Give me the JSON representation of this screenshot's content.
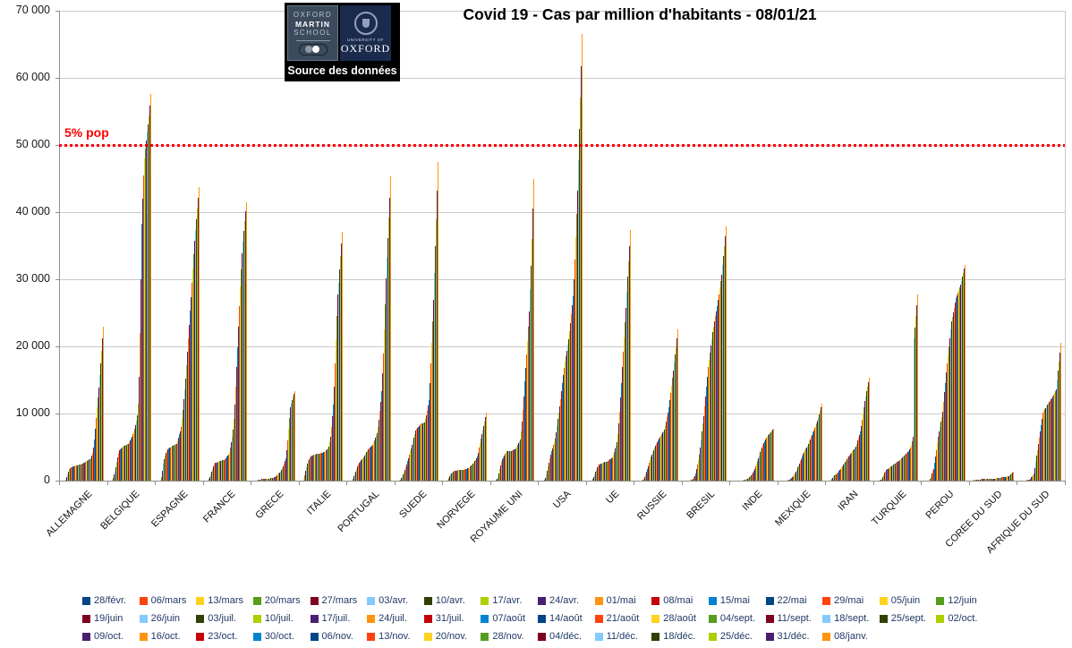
{
  "title": "Covid 19 - Cas par million d'habitants - 08/01/21",
  "logo": {
    "school_line1": "OXFORD",
    "school_line2": "MARTIN",
    "school_line3": "SCHOOL",
    "univ_line1": "UNIVERSITY OF",
    "univ_line2": "OXFORD",
    "caption": "Source des données"
  },
  "threshold": {
    "label": "5% pop",
    "value": 50000,
    "color": "#fe0000"
  },
  "y_axis": {
    "ticks": [
      {
        "value": 70000,
        "label": "70 000"
      },
      {
        "value": 60000,
        "label": "60 000"
      },
      {
        "value": 50000,
        "label": "50 000"
      },
      {
        "value": 40000,
        "label": "40 000"
      },
      {
        "value": 30000,
        "label": "30 000"
      },
      {
        "value": 20000,
        "label": "20 000"
      },
      {
        "value": 10000,
        "label": "10 000"
      },
      {
        "value": 0,
        "label": "0"
      }
    ]
  },
  "palette": [
    "#004586",
    "#ff420e",
    "#ffd320",
    "#579d1c",
    "#7e0021",
    "#83caff",
    "#314004",
    "#aecf00",
    "#4b1f6f",
    "#ff950e",
    "#c5000b",
    "#0084d1"
  ],
  "legend": {
    "text_color": "#1f3864",
    "columns": 16,
    "rows": [
      16,
      16,
      14
    ],
    "position": "bottom"
  },
  "chart_data": {
    "type": "bar",
    "title": "Covid 19 - Cas par million d'habitants - 08/01/21",
    "xlabel": "",
    "ylabel": "",
    "ylim": [
      0,
      70000
    ],
    "grid": true,
    "legend_position": "bottom",
    "note": "Cumulative Covid-19 cases per million inhabitants; one bar per weekly date (legend) for each country; red dotted reference line at 50 000 = 5% of population.",
    "dates": [
      "28/févr.",
      "06/mars",
      "13/mars",
      "20/mars",
      "27/mars",
      "03/avr.",
      "10/avr.",
      "17/avr.",
      "24/avr.",
      "01/mai",
      "08/mai",
      "15/mai",
      "22/mai",
      "29/mai",
      "05/juin",
      "12/juin",
      "19/juin",
      "26/juin",
      "03/juil.",
      "10/juil.",
      "17/juil.",
      "24/juil.",
      "31/juil.",
      "07/août",
      "14/août",
      "21/août",
      "28/août",
      "04/sept.",
      "11/sept.",
      "18/sept.",
      "25/sept.",
      "02/oct.",
      "09/oct.",
      "16/oct.",
      "23/oct.",
      "30/oct.",
      "06/nov.",
      "13/nov.",
      "20/nov.",
      "28/nov.",
      "04/déc.",
      "11/déc.",
      "18/déc.",
      "25/déc.",
      "31/déc.",
      "08/janv."
    ],
    "categories": [
      "ALLEMAGNE",
      "BELGIQUE",
      "ESPAGNE",
      "FRANCE",
      "GRECE",
      "ITALIE",
      "PORTUGAL",
      "SUEDE",
      "NORVEGE",
      "ROYAUME UNI",
      "USA",
      "UE",
      "RUSSIE",
      "BRESIL",
      "INDE",
      "MEXIQUE",
      "IRAN",
      "TURQUIE",
      "PEROU",
      "COREE DU SUD",
      "AFRIQUE DU SUD"
    ],
    "countries": [
      {
        "name": "ALLEMAGNE",
        "values": [
          1,
          10,
          40,
          160,
          520,
          950,
          1400,
          1700,
          1900,
          2000,
          2070,
          2110,
          2150,
          2190,
          2230,
          2260,
          2300,
          2340,
          2380,
          2410,
          2450,
          2520,
          2590,
          2660,
          2720,
          2790,
          2880,
          2970,
          3060,
          3150,
          3250,
          3400,
          3700,
          4200,
          5000,
          6200,
          7700,
          9300,
          10900,
          12400,
          13900,
          15700,
          17500,
          19300,
          21200,
          23000
        ]
      },
      {
        "name": "BELGIQUE",
        "values": [
          1,
          20,
          100,
          400,
          900,
          1390,
          2000,
          2800,
          3500,
          4100,
          4520,
          4660,
          4800,
          4930,
          5070,
          5200,
          5260,
          5330,
          5390,
          5460,
          5520,
          5700,
          5950,
          6250,
          6550,
          6900,
          7200,
          7700,
          8300,
          9000,
          9700,
          11500,
          15500,
          22000,
          30000,
          38300,
          42000,
          45500,
          48000,
          49500,
          50700,
          51900,
          53100,
          54400,
          55900,
          57600
        ]
      },
      {
        "name": "ESPAGNE",
        "values": [
          1,
          15,
          120,
          600,
          1500,
          2550,
          3200,
          3700,
          4100,
          4450,
          4700,
          4800,
          4900,
          5000,
          5090,
          5170,
          5240,
          5310,
          5380,
          5450,
          5530,
          5900,
          6400,
          6900,
          7400,
          8000,
          9200,
          10600,
          12100,
          13600,
          15200,
          17200,
          19200,
          21200,
          23200,
          25300,
          27400,
          29500,
          31600,
          33700,
          35700,
          37300,
          38900,
          40500,
          42100,
          43700
        ]
      },
      {
        "name": "FRANCE",
        "values": [
          1,
          10,
          60,
          250,
          600,
          960,
          1400,
          1800,
          2200,
          2450,
          2630,
          2680,
          2730,
          2780,
          2830,
          2880,
          2930,
          2980,
          3030,
          3080,
          3120,
          3260,
          3400,
          3540,
          3680,
          3820,
          4300,
          4900,
          5700,
          6600,
          7660,
          9200,
          11300,
          14000,
          17000,
          19900,
          23000,
          26000,
          29000,
          31500,
          33900,
          35600,
          37200,
          38700,
          40100,
          41500
        ]
      },
      {
        "name": "GRECE",
        "values": [
          0,
          5,
          25,
          60,
          110,
          165,
          185,
          205,
          225,
          245,
          260,
          270,
          280,
          285,
          295,
          300,
          315,
          330,
          350,
          370,
          385,
          450,
          520,
          600,
          680,
          770,
          900,
          1050,
          1200,
          1400,
          1600,
          1900,
          2200,
          2600,
          3000,
          3400,
          4600,
          6000,
          7700,
          9400,
          11000,
          11500,
          12000,
          12500,
          12900,
          13300
        ]
      },
      {
        "name": "ITALIE",
        "values": [
          2,
          40,
          290,
          780,
          1440,
          2000,
          2500,
          2900,
          3200,
          3450,
          3620,
          3700,
          3770,
          3830,
          3880,
          3930,
          3960,
          3990,
          4020,
          4040,
          4060,
          4100,
          4140,
          4190,
          4230,
          4280,
          4380,
          4500,
          4650,
          4850,
          5100,
          5700,
          6600,
          8000,
          9600,
          11300,
          14000,
          17500,
          21000,
          24500,
          27700,
          29500,
          31500,
          33500,
          35300,
          37100
        ]
      },
      {
        "name": "PORTUGAL",
        "values": [
          0,
          5,
          50,
          300,
          650,
          1030,
          1400,
          1750,
          2100,
          2400,
          2650,
          2850,
          3030,
          3200,
          3370,
          3530,
          3760,
          4000,
          4230,
          4470,
          4700,
          4840,
          4980,
          5120,
          5260,
          5400,
          5700,
          6000,
          6350,
          6700,
          7060,
          8000,
          9100,
          10400,
          11800,
          13400,
          16000,
          19000,
          22500,
          26300,
          30200,
          33200,
          36200,
          39200,
          42200,
          45300
        ]
      },
      {
        "name": "SUEDE",
        "values": [
          1,
          15,
          80,
          200,
          400,
          590,
          900,
          1250,
          1650,
          2050,
          2430,
          2900,
          3400,
          3900,
          4400,
          4850,
          5400,
          5900,
          6400,
          6900,
          7480,
          7700,
          7870,
          8030,
          8190,
          8350,
          8430,
          8510,
          8590,
          8670,
          8740,
          9200,
          9800,
          10400,
          11200,
          12000,
          14500,
          17500,
          20500,
          23700,
          27000,
          31000,
          35000,
          39000,
          43200,
          47500
        ]
      },
      {
        "name": "NORVEGE",
        "values": [
          1,
          20,
          100,
          350,
          700,
          980,
          1130,
          1250,
          1350,
          1430,
          1500,
          1520,
          1540,
          1560,
          1580,
          1590,
          1610,
          1625,
          1640,
          1655,
          1670,
          1710,
          1750,
          1790,
          1830,
          1870,
          1990,
          2110,
          2230,
          2350,
          2480,
          2680,
          2880,
          3090,
          3310,
          3540,
          4200,
          4900,
          5600,
          6300,
          7000,
          7600,
          8200,
          8800,
          9450,
          10100
        ]
      },
      {
        "name": "ROYAUME UNI",
        "values": [
          1,
          10,
          40,
          130,
          300,
          570,
          1100,
          1700,
          2300,
          2800,
          3160,
          3450,
          3700,
          3950,
          4150,
          4360,
          4370,
          4380,
          4390,
          4395,
          4400,
          4480,
          4560,
          4640,
          4720,
          4800,
          5080,
          5360,
          5640,
          5920,
          6200,
          7400,
          8800,
          10600,
          12600,
          14800,
          16800,
          18800,
          20800,
          23000,
          25200,
          28500,
          32000,
          36000,
          40500,
          45000
        ]
      },
      {
        "name": "USA",
        "values": [
          1,
          10,
          50,
          200,
          450,
          840,
          1500,
          2100,
          2700,
          3300,
          3870,
          4350,
          4830,
          5310,
          5780,
          6250,
          7200,
          8200,
          9200,
          10200,
          11100,
          12200,
          13300,
          14500,
          15700,
          16800,
          17700,
          18600,
          19400,
          20300,
          21100,
          22300,
          23500,
          24800,
          26100,
          27500,
          30000,
          33000,
          36300,
          39700,
          43200,
          47800,
          52400,
          57100,
          61800,
          66600
        ]
      },
      {
        "name": "UE",
        "values": [
          1,
          10,
          60,
          250,
          550,
          940,
          1300,
          1650,
          1950,
          2180,
          2350,
          2430,
          2500,
          2570,
          2640,
          2700,
          2740,
          2780,
          2820,
          2860,
          2900,
          3020,
          3140,
          3260,
          3380,
          3500,
          3900,
          4300,
          4750,
          5250,
          5800,
          7000,
          8500,
          10300,
          12400,
          14600,
          17000,
          19200,
          21400,
          23600,
          25800,
          28100,
          30400,
          32700,
          35000,
          37300
        ]
      },
      {
        "name": "RUSSIE",
        "values": [
          0,
          1,
          3,
          8,
          17,
          32,
          120,
          300,
          600,
          950,
          1290,
          1750,
          2200,
          2650,
          3100,
          3560,
          3900,
          4230,
          4560,
          4880,
          5200,
          5460,
          5720,
          5980,
          6230,
          6480,
          6700,
          6930,
          7150,
          7370,
          7600,
          8200,
          8800,
          9500,
          10200,
          11000,
          12000,
          13100,
          14200,
          15300,
          16400,
          17600,
          18800,
          20000,
          21200,
          22500
        ]
      },
      {
        "name": "BRESIL",
        "values": [
          0,
          1,
          4,
          12,
          25,
          42,
          100,
          200,
          330,
          490,
          665,
          1100,
          1700,
          2400,
          3100,
          3910,
          5000,
          6200,
          7300,
          8500,
          9670,
          11100,
          12600,
          14000,
          15500,
          16900,
          18000,
          19100,
          20100,
          21100,
          22100,
          22900,
          23700,
          24500,
          25200,
          26000,
          26900,
          27800,
          28800,
          29700,
          30700,
          32100,
          33500,
          35000,
          36400,
          37900
        ]
      },
      {
        "name": "INDE",
        "values": [
          0,
          0,
          0,
          1,
          1,
          2,
          6,
          12,
          20,
          30,
          43,
          70,
          100,
          135,
          175,
          216,
          300,
          400,
          510,
          630,
          750,
          1000,
          1250,
          1520,
          1800,
          2100,
          2500,
          2900,
          3350,
          3800,
          4280,
          4650,
          5000,
          5320,
          5640,
          5940,
          6160,
          6370,
          6580,
          6770,
          6960,
          7110,
          7260,
          7410,
          7560,
          7700
        ]
      },
      {
        "name": "MEXIQUE",
        "values": [
          0,
          0,
          1,
          3,
          7,
          12,
          40,
          80,
          130,
          185,
          240,
          390,
          550,
          710,
          880,
          1050,
          1350,
          1660,
          1970,
          2280,
          2590,
          2930,
          3270,
          3610,
          3950,
          4290,
          4530,
          4760,
          5000,
          5230,
          5470,
          5810,
          6150,
          6490,
          6830,
          7170,
          7520,
          7860,
          8200,
          8550,
          8900,
          9400,
          9900,
          10400,
          10950,
          11500
        ]
      },
      {
        "name": "IRAN",
        "values": [
          2,
          30,
          130,
          280,
          450,
          630,
          760,
          880,
          1000,
          1120,
          1240,
          1420,
          1600,
          1780,
          1960,
          2140,
          2350,
          2570,
          2780,
          3000,
          3210,
          3410,
          3600,
          3800,
          4000,
          4190,
          4360,
          4540,
          4710,
          4890,
          5060,
          5500,
          5950,
          6400,
          6850,
          7290,
          8200,
          9100,
          10000,
          11000,
          11900,
          12600,
          13300,
          14000,
          14650,
          15300
        ]
      },
      {
        "name": "TURQUIE",
        "values": [
          0,
          2,
          20,
          80,
          160,
          250,
          550,
          850,
          1150,
          1400,
          1620,
          1710,
          1800,
          1900,
          1990,
          2080,
          2180,
          2280,
          2380,
          2480,
          2580,
          2670,
          2760,
          2840,
          2930,
          3010,
          3150,
          3290,
          3430,
          3560,
          3700,
          3850,
          4000,
          4150,
          4290,
          4440,
          4700,
          5000,
          5400,
          5900,
          6500,
          21200,
          22800,
          24500,
          26100,
          27800
        ]
      },
      {
        "name": "PEROU",
        "values": [
          0,
          1,
          5,
          12,
          25,
          40,
          300,
          650,
          1050,
          1420,
          1790,
          2700,
          3650,
          4600,
          5560,
          6520,
          7280,
          8030,
          8790,
          9540,
          10300,
          11700,
          13200,
          14600,
          16100,
          17500,
          18700,
          20000,
          21200,
          22500,
          23700,
          24400,
          25100,
          25800,
          26500,
          27200,
          27600,
          28000,
          28400,
          28800,
          29200,
          29800,
          30400,
          31000,
          31600,
          32200
        ]
      },
      {
        "name": "COREE DU SUD",
        "values": [
          57,
          120,
          160,
          180,
          190,
          196,
          200,
          203,
          206,
          209,
          212,
          217,
          221,
          226,
          230,
          235,
          241,
          247,
          254,
          260,
          267,
          279,
          290,
          302,
          313,
          325,
          352,
          379,
          406,
          433,
          460,
          472,
          484,
          496,
          508,
          520,
          558,
          596,
          634,
          672,
          710,
          830,
          950,
          1070,
          1190,
          1310
        ]
      },
      {
        "name": "AFRIQUE DU SUD",
        "values": [
          0,
          0,
          1,
          4,
          12,
          25,
          50,
          75,
          100,
          125,
          150,
          320,
          500,
          680,
          860,
          1030,
          1920,
          2810,
          3700,
          4600,
          5490,
          6430,
          7380,
          8320,
          9260,
          10200,
          10420,
          10640,
          10860,
          11080,
          11300,
          11500,
          11700,
          11900,
          12100,
          12300,
          12560,
          12820,
          13080,
          13340,
          13600,
          14980,
          16360,
          17740,
          19120,
          20500
        ]
      }
    ]
  }
}
